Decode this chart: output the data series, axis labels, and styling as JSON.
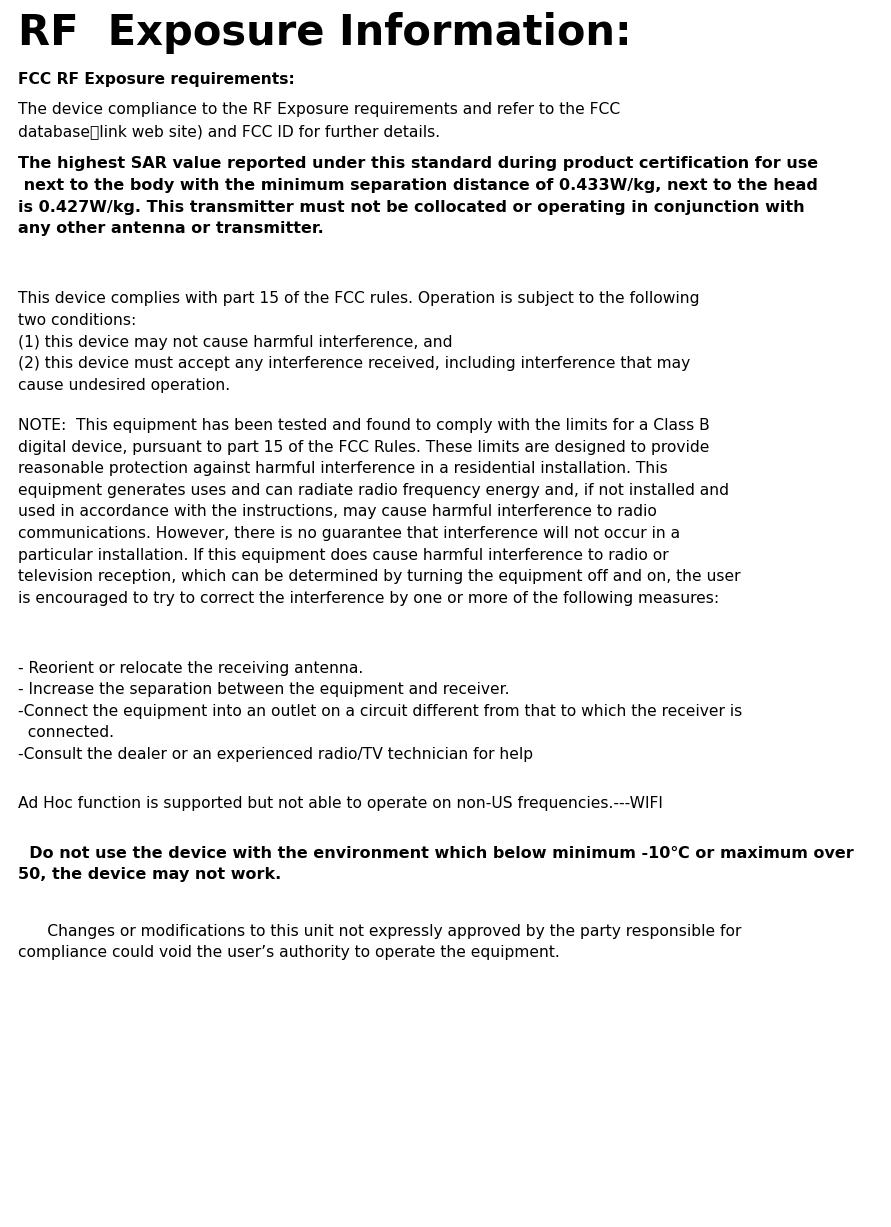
{
  "title": "RF  Exposure Information:",
  "background_color": "#ffffff",
  "text_color": "#000000",
  "figsize": [
    8.91,
    12.27
  ],
  "dpi": 100,
  "title_fontsize": 30,
  "body_fontsize": 11.2,
  "sections": [
    {
      "text": "FCC RF Exposure requirements:",
      "bold": true,
      "fontsize": 11.2,
      "space_before": 4
    },
    {
      "text": "The device compliance to the RF Exposure requirements and refer to the FCC\ndatabase（link web site) and FCC ID for further details.",
      "bold": false,
      "fontsize": 11.2,
      "space_before": 4
    },
    {
      "text": "The highest SAR value reported under this standard during product certification for use\n next to the body with the minimum separation distance of 0.433W/kg, next to the head\nis 0.427W/kg. This transmitter must not be collocated or operating in conjunction with\nany other antenna or transmitter.",
      "bold": true,
      "fontsize": 11.5,
      "space_before": 4
    },
    {
      "text": " ",
      "bold": false,
      "fontsize": 11.2,
      "space_before": 4
    },
    {
      "text": "This device complies with part 15 of the FCC rules. Operation is subject to the following\ntwo conditions:\n(1) this device may not cause harmful interference, and\n(2) this device must accept any interference received, including interference that may\ncause undesired operation.",
      "bold": false,
      "fontsize": 11.2,
      "space_before": 4
    },
    {
      "text": "NOTE:  This equipment has been tested and found to comply with the limits for a Class B\ndigital device, pursuant to part 15 of the FCC Rules. These limits are designed to provide\nreasonable protection against harmful interference in a residential installation. This\nequipment generates uses and can radiate radio frequency energy and, if not installed and\nused in accordance with the instructions, may cause harmful interference to radio\ncommunications. However, there is no guarantee that interference will not occur in a\nparticular installation. If this equipment does cause harmful interference to radio or\ntelevision reception, which can be determined by turning the equipment off and on, the user\nis encouraged to try to correct the interference by one or more of the following measures:",
      "bold": false,
      "fontsize": 11.2,
      "space_before": 4
    },
    {
      "text": "\n- Reorient or relocate the receiving antenna.\n- Increase the separation between the equipment and receiver.\n-Connect the equipment into an outlet on a circuit different from that to which the receiver is\n  connected.\n-Consult the dealer or an experienced radio/TV technician for help",
      "bold": false,
      "fontsize": 11.2,
      "space_before": 2
    },
    {
      "text": "Ad Hoc function is supported but not able to operate on non-US frequencies.---WIFI",
      "bold": false,
      "fontsize": 11.2,
      "space_before": 10
    },
    {
      "text": "\n  Do not use the device with the environment which below minimum -10℃ or maximum over\n50, the device may not work.",
      "bold": true,
      "fontsize": 11.5,
      "space_before": 2
    },
    {
      "text": "\n      Changes or modifications to this unit not expressly approved by the party responsible for\ncompliance could void the user’s authority to operate the equipment.",
      "bold": false,
      "fontsize": 11.2,
      "space_before": 2
    }
  ]
}
